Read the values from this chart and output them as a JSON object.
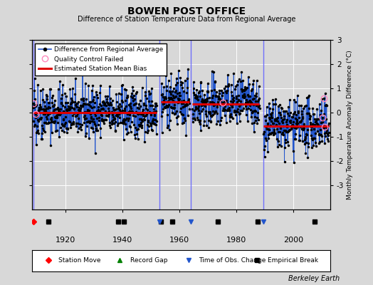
{
  "title": "BOWEN POST OFFICE",
  "subtitle": "Difference of Station Temperature Data from Regional Average",
  "ylabel_right": "Monthly Temperature Anomaly Difference (°C)",
  "credit": "Berkeley Earth",
  "xlim": [
    1908,
    2013
  ],
  "ylim": [
    -4,
    3
  ],
  "yticks": [
    -3,
    -2,
    -1,
    0,
    1,
    2,
    3
  ],
  "xticks": [
    1920,
    1940,
    1960,
    1980,
    2000
  ],
  "background_color": "#d8d8d8",
  "plot_bg_color": "#d8d8d8",
  "seed": 42,
  "segments": [
    {
      "start": 1908.5,
      "end": 1952.0,
      "bias": 0.0
    },
    {
      "start": 1953.5,
      "end": 1963.5,
      "bias": 0.45
    },
    {
      "start": 1964.5,
      "end": 1988.0,
      "bias": 0.35
    },
    {
      "start": 1989.5,
      "end": 2012.5,
      "bias": -0.55
    }
  ],
  "vertical_blue_lines": [
    1908.5,
    1953.0,
    1964.0,
    1989.5
  ],
  "empirical_breaks": [
    1914.0,
    1938.5,
    1940.5,
    1953.5,
    1957.5,
    1973.5,
    1987.5,
    2007.5
  ],
  "station_moves": [
    1908.5
  ],
  "obs_changes": [
    1953.0,
    1964.0,
    1989.5
  ],
  "qc_failed_approx": [
    1908.4,
    1909.3,
    1975.3,
    2010.3,
    2010.9,
    2011.2
  ],
  "break_y": -3.35,
  "noise_std": 0.52,
  "noise_std_early": 0.35,
  "t_start": 1908.5,
  "t_end": 2012.6
}
